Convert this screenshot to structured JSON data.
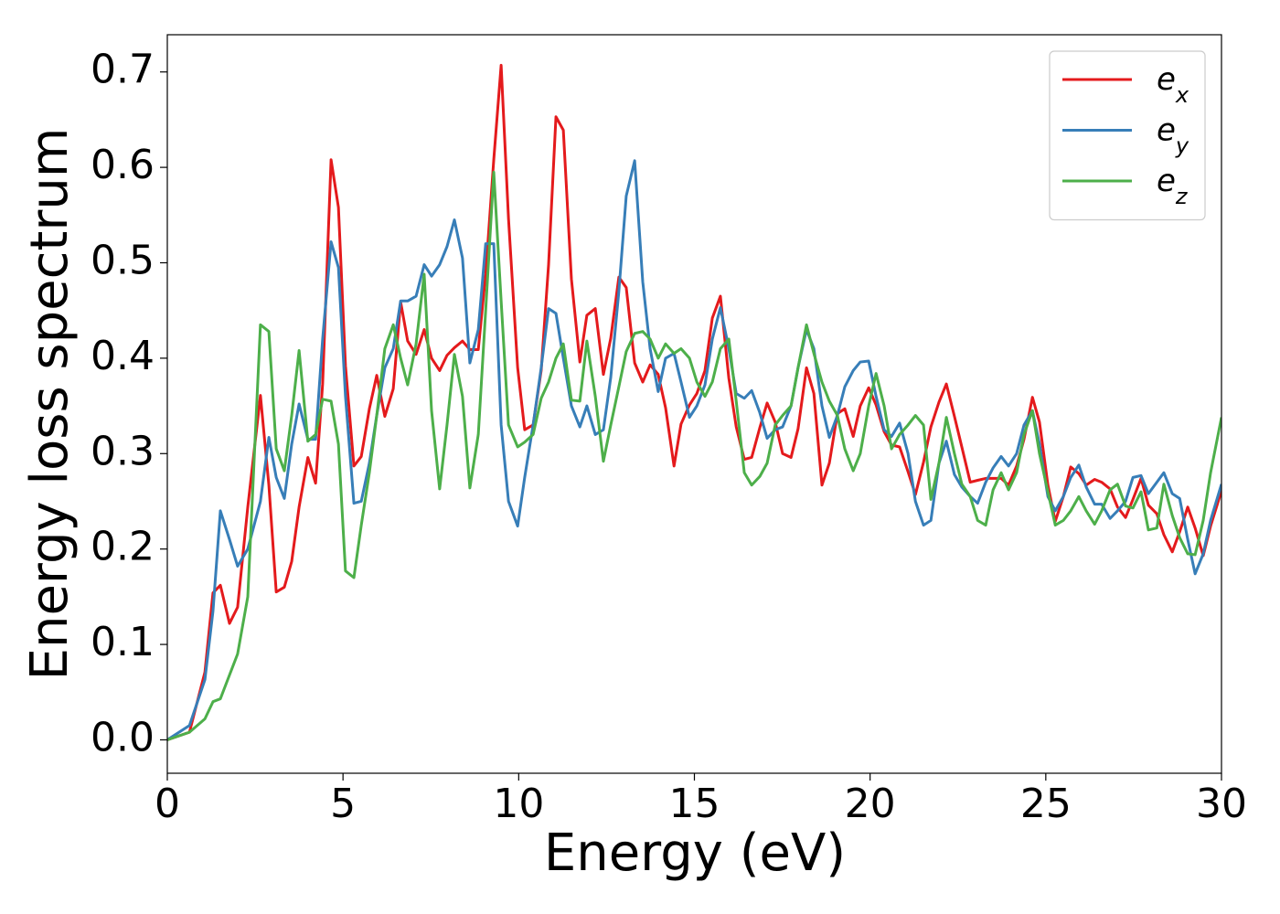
{
  "chart_data": {
    "type": "line",
    "xlabel": "Energy (eV)",
    "ylabel": "Energy loss spectrum",
    "xlim": [
      0,
      30
    ],
    "ylim": [
      -0.035,
      0.739
    ],
    "xticks": [
      0,
      5,
      10,
      15,
      20,
      25,
      30
    ],
    "yticks": [
      {
        "value": 0,
        "label": "0.0"
      },
      0.1,
      0.2,
      0.3,
      0.4,
      0.5,
      0.6,
      0.7
    ],
    "grid": false,
    "legend": "upper right",
    "x": [
      0,
      0.63,
      1.07,
      1.3,
      1.51,
      1.77,
      2.0,
      2.29,
      2.65,
      2.89,
      3.1,
      3.33,
      3.54,
      3.75,
      4.0,
      4.22,
      4.42,
      4.66,
      4.87,
      5.07,
      5.31,
      5.52,
      5.75,
      5.96,
      6.19,
      6.43,
      6.64,
      6.84,
      7.08,
      7.31,
      7.52,
      7.75,
      7.96,
      8.17,
      8.4,
      8.61,
      8.85,
      9.06,
      9.29,
      9.5,
      9.71,
      9.97,
      10.17,
      10.41,
      10.64,
      10.85,
      11.06,
      11.27,
      11.5,
      11.74,
      11.94,
      12.18,
      12.41,
      12.62,
      12.85,
      13.06,
      13.3,
      13.53,
      13.74,
      13.97,
      14.18,
      14.42,
      14.62,
      14.86,
      15.07,
      15.3,
      15.51,
      15.74,
      15.98,
      16.19,
      16.42,
      16.63,
      16.86,
      17.07,
      17.3,
      17.51,
      17.75,
      17.95,
      18.19,
      18.4,
      18.63,
      18.84,
      19.07,
      19.28,
      19.52,
      19.72,
      19.96,
      20.17,
      20.4,
      20.61,
      20.84,
      21.08,
      21.29,
      21.52,
      21.73,
      21.96,
      22.17,
      22.4,
      22.61,
      22.85,
      23.06,
      23.29,
      23.5,
      23.73,
      23.94,
      24.17,
      24.38,
      24.62,
      24.82,
      25.06,
      25.27,
      25.5,
      25.71,
      25.94,
      26.15,
      26.39,
      26.59,
      26.83,
      27.04,
      27.27,
      27.48,
      27.71,
      27.92,
      28.16,
      28.36,
      28.6,
      28.81,
      29.04,
      29.25,
      29.48,
      29.69,
      30
    ],
    "series": [
      {
        "name": "e_x",
        "color": "#e41a1c",
        "values": [
          0,
          0.008,
          0.071,
          0.154,
          0.162,
          0.122,
          0.139,
          0.244,
          0.361,
          0.267,
          0.155,
          0.16,
          0.187,
          0.244,
          0.296,
          0.269,
          0.373,
          0.608,
          0.558,
          0.392,
          0.287,
          0.297,
          0.347,
          0.382,
          0.339,
          0.368,
          0.459,
          0.418,
          0.404,
          0.43,
          0.4,
          0.387,
          0.403,
          0.411,
          0.418,
          0.409,
          0.409,
          0.488,
          0.608,
          0.707,
          0.546,
          0.39,
          0.325,
          0.33,
          0.387,
          0.498,
          0.653,
          0.639,
          0.483,
          0.396,
          0.445,
          0.452,
          0.383,
          0.421,
          0.485,
          0.474,
          0.395,
          0.375,
          0.393,
          0.383,
          0.348,
          0.287,
          0.331,
          0.351,
          0.363,
          0.387,
          0.442,
          0.465,
          0.379,
          0.328,
          0.294,
          0.296,
          0.327,
          0.353,
          0.333,
          0.3,
          0.296,
          0.326,
          0.39,
          0.363,
          0.267,
          0.29,
          0.342,
          0.347,
          0.318,
          0.35,
          0.369,
          0.351,
          0.323,
          0.309,
          0.307,
          0.281,
          0.257,
          0.291,
          0.328,
          0.354,
          0.373,
          0.339,
          0.307,
          0.27,
          0.272,
          0.274,
          0.274,
          0.274,
          0.267,
          0.287,
          0.315,
          0.359,
          0.333,
          0.267,
          0.229,
          0.255,
          0.286,
          0.279,
          0.267,
          0.273,
          0.27,
          0.263,
          0.244,
          0.233,
          0.252,
          0.274,
          0.246,
          0.237,
          0.215,
          0.197,
          0.218,
          0.244,
          0.222,
          0.193,
          0.224,
          0.261
        ]
      },
      {
        "name": "e_y",
        "color": "#377eb8",
        "values": [
          0,
          0.015,
          0.063,
          0.135,
          0.24,
          0.21,
          0.182,
          0.2,
          0.25,
          0.317,
          0.275,
          0.253,
          0.31,
          0.352,
          0.315,
          0.315,
          0.42,
          0.522,
          0.495,
          0.36,
          0.248,
          0.25,
          0.29,
          0.34,
          0.39,
          0.41,
          0.46,
          0.46,
          0.465,
          0.498,
          0.486,
          0.498,
          0.517,
          0.545,
          0.505,
          0.395,
          0.43,
          0.52,
          0.52,
          0.33,
          0.25,
          0.224,
          0.275,
          0.33,
          0.39,
          0.452,
          0.447,
          0.4,
          0.35,
          0.328,
          0.35,
          0.32,
          0.325,
          0.38,
          0.47,
          0.57,
          0.607,
          0.48,
          0.41,
          0.365,
          0.4,
          0.405,
          0.375,
          0.338,
          0.35,
          0.372,
          0.42,
          0.453,
          0.41,
          0.363,
          0.358,
          0.366,
          0.343,
          0.316,
          0.325,
          0.328,
          0.35,
          0.39,
          0.43,
          0.41,
          0.35,
          0.317,
          0.34,
          0.37,
          0.387,
          0.396,
          0.397,
          0.36,
          0.325,
          0.318,
          0.332,
          0.3,
          0.25,
          0.225,
          0.23,
          0.29,
          0.313,
          0.278,
          0.265,
          0.255,
          0.248,
          0.27,
          0.285,
          0.297,
          0.287,
          0.3,
          0.33,
          0.345,
          0.31,
          0.255,
          0.24,
          0.255,
          0.275,
          0.288,
          0.265,
          0.247,
          0.247,
          0.232,
          0.24,
          0.25,
          0.275,
          0.277,
          0.258,
          0.27,
          0.28,
          0.258,
          0.253,
          0.21,
          0.174,
          0.195,
          0.23,
          0.268
        ]
      },
      {
        "name": "e_z",
        "color": "#4daf4a",
        "values": [
          0,
          0.008,
          0.022,
          0.04,
          0.043,
          0.068,
          0.09,
          0.15,
          0.435,
          0.428,
          0.305,
          0.282,
          0.34,
          0.408,
          0.313,
          0.32,
          0.357,
          0.355,
          0.31,
          0.177,
          0.17,
          0.225,
          0.28,
          0.34,
          0.41,
          0.435,
          0.4,
          0.372,
          0.415,
          0.488,
          0.345,
          0.263,
          0.33,
          0.404,
          0.36,
          0.264,
          0.32,
          0.45,
          0.595,
          0.46,
          0.33,
          0.307,
          0.312,
          0.32,
          0.358,
          0.375,
          0.4,
          0.415,
          0.356,
          0.355,
          0.418,
          0.36,
          0.292,
          0.33,
          0.37,
          0.407,
          0.426,
          0.428,
          0.42,
          0.4,
          0.415,
          0.405,
          0.41,
          0.4,
          0.375,
          0.36,
          0.375,
          0.41,
          0.42,
          0.355,
          0.28,
          0.267,
          0.276,
          0.29,
          0.33,
          0.34,
          0.35,
          0.39,
          0.435,
          0.405,
          0.375,
          0.355,
          0.34,
          0.305,
          0.282,
          0.3,
          0.35,
          0.384,
          0.35,
          0.305,
          0.32,
          0.33,
          0.34,
          0.33,
          0.252,
          0.29,
          0.338,
          0.3,
          0.268,
          0.255,
          0.23,
          0.225,
          0.262,
          0.28,
          0.262,
          0.28,
          0.32,
          0.345,
          0.3,
          0.26,
          0.225,
          0.23,
          0.24,
          0.255,
          0.24,
          0.226,
          0.24,
          0.262,
          0.268,
          0.245,
          0.243,
          0.26,
          0.22,
          0.222,
          0.268,
          0.235,
          0.212,
          0.195,
          0.194,
          0.23,
          0.28,
          0.338
        ]
      }
    ]
  }
}
